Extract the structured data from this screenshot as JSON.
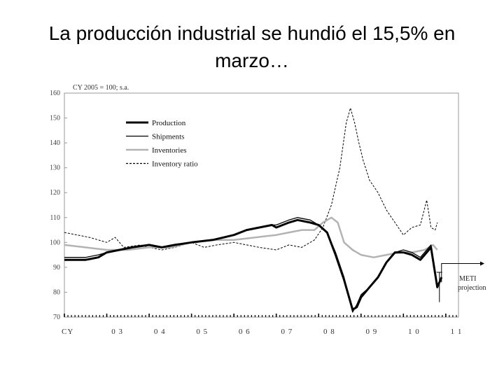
{
  "title": "La producción industrial se hundió el 15,5% en marzo…",
  "chart_data": {
    "type": "line",
    "unit_note": "CY 2005 = 100; s.a.",
    "ylim": [
      70,
      160
    ],
    "yticks": [
      70,
      80,
      90,
      100,
      110,
      120,
      130,
      140,
      150,
      160
    ],
    "x_axis_prefix": "CY",
    "x_years": [
      {
        "label": "0 3",
        "t": 2003.0
      },
      {
        "label": "0 4",
        "t": 2004.0
      },
      {
        "label": "0 5",
        "t": 2005.0
      },
      {
        "label": "0 6",
        "t": 2006.0
      },
      {
        "label": "0 7",
        "t": 2007.0
      },
      {
        "label": "0 8",
        "t": 2008.0
      },
      {
        "label": "0 9",
        "t": 2009.0
      },
      {
        "label": "1 0",
        "t": 2010.0
      },
      {
        "label": "1 1",
        "t": 2011.0
      }
    ],
    "xlim": [
      2002.0,
      2011.3
    ],
    "annotation": "METI projection",
    "legend_position": "upper-left",
    "series": [
      {
        "name": "Production",
        "color": "#000000",
        "width": 3,
        "dash": "",
        "points": [
          [
            2002.0,
            93
          ],
          [
            2002.5,
            93
          ],
          [
            2002.8,
            94
          ],
          [
            2003.0,
            96
          ],
          [
            2003.3,
            97
          ],
          [
            2003.6,
            98
          ],
          [
            2004.0,
            99
          ],
          [
            2004.3,
            98
          ],
          [
            2004.6,
            99
          ],
          [
            2005.0,
            100
          ],
          [
            2005.5,
            101
          ],
          [
            2006.0,
            103
          ],
          [
            2006.3,
            105
          ],
          [
            2006.6,
            106
          ],
          [
            2006.9,
            107
          ],
          [
            2007.0,
            106
          ],
          [
            2007.3,
            108
          ],
          [
            2007.5,
            109
          ],
          [
            2007.8,
            108
          ],
          [
            2008.0,
            107
          ],
          [
            2008.2,
            104
          ],
          [
            2008.4,
            95
          ],
          [
            2008.6,
            85
          ],
          [
            2008.8,
            73
          ],
          [
            2008.9,
            74
          ],
          [
            2009.0,
            78
          ],
          [
            2009.2,
            82
          ],
          [
            2009.4,
            86
          ],
          [
            2009.6,
            92
          ],
          [
            2009.8,
            96
          ],
          [
            2010.0,
            96
          ],
          [
            2010.2,
            95
          ],
          [
            2010.4,
            93
          ],
          [
            2010.5,
            95
          ],
          [
            2010.65,
            98
          ],
          [
            2010.8,
            82
          ],
          [
            2010.9,
            86
          ]
        ]
      },
      {
        "name": "Shipments",
        "color": "#000000",
        "width": 1.3,
        "dash": "",
        "points": [
          [
            2002.0,
            94
          ],
          [
            2002.5,
            94
          ],
          [
            2002.8,
            95
          ],
          [
            2003.0,
            96
          ],
          [
            2003.3,
            97
          ],
          [
            2003.6,
            98
          ],
          [
            2004.0,
            99
          ],
          [
            2004.3,
            98
          ],
          [
            2004.6,
            99
          ],
          [
            2005.0,
            100
          ],
          [
            2005.5,
            101
          ],
          [
            2006.0,
            103
          ],
          [
            2006.3,
            105
          ],
          [
            2006.6,
            106
          ],
          [
            2006.9,
            107
          ],
          [
            2007.0,
            107
          ],
          [
            2007.3,
            109
          ],
          [
            2007.5,
            110
          ],
          [
            2007.8,
            109
          ],
          [
            2008.0,
            107
          ],
          [
            2008.2,
            104
          ],
          [
            2008.4,
            96
          ],
          [
            2008.6,
            86
          ],
          [
            2008.8,
            72
          ],
          [
            2008.9,
            75
          ],
          [
            2009.0,
            79
          ],
          [
            2009.2,
            82
          ],
          [
            2009.4,
            86
          ],
          [
            2009.6,
            92
          ],
          [
            2009.8,
            96
          ],
          [
            2010.0,
            97
          ],
          [
            2010.2,
            96
          ],
          [
            2010.4,
            94
          ],
          [
            2010.5,
            96
          ],
          [
            2010.65,
            99
          ],
          [
            2010.8,
            83
          ],
          [
            2010.9,
            85
          ]
        ]
      },
      {
        "name": "Inventories",
        "color": "#b3b3b3",
        "width": 2.5,
        "dash": "",
        "points": [
          [
            2002.0,
            99
          ],
          [
            2002.5,
            98
          ],
          [
            2003.0,
            97
          ],
          [
            2003.5,
            97
          ],
          [
            2004.0,
            98
          ],
          [
            2004.5,
            98
          ],
          [
            2005.0,
            100
          ],
          [
            2005.5,
            101
          ],
          [
            2006.0,
            101
          ],
          [
            2006.5,
            102
          ],
          [
            2007.0,
            103
          ],
          [
            2007.3,
            104
          ],
          [
            2007.6,
            105
          ],
          [
            2007.9,
            105
          ],
          [
            2008.1,
            108
          ],
          [
            2008.3,
            110
          ],
          [
            2008.45,
            108
          ],
          [
            2008.6,
            100
          ],
          [
            2008.8,
            97
          ],
          [
            2009.0,
            95
          ],
          [
            2009.3,
            94
          ],
          [
            2009.6,
            95
          ],
          [
            2009.9,
            96
          ],
          [
            2010.2,
            96
          ],
          [
            2010.5,
            97
          ],
          [
            2010.7,
            99
          ],
          [
            2010.8,
            97
          ]
        ]
      },
      {
        "name": "Inventory ratio",
        "color": "#000000",
        "width": 1,
        "dash": "3,2",
        "points": [
          [
            2002.0,
            104
          ],
          [
            2002.3,
            103
          ],
          [
            2002.6,
            102
          ],
          [
            2003.0,
            100
          ],
          [
            2003.2,
            102
          ],
          [
            2003.4,
            98
          ],
          [
            2003.8,
            99
          ],
          [
            2004.0,
            98
          ],
          [
            2004.3,
            97
          ],
          [
            2004.6,
            98
          ],
          [
            2005.0,
            100
          ],
          [
            2005.3,
            98
          ],
          [
            2005.6,
            99
          ],
          [
            2006.0,
            100
          ],
          [
            2006.3,
            99
          ],
          [
            2006.6,
            98
          ],
          [
            2007.0,
            97
          ],
          [
            2007.3,
            99
          ],
          [
            2007.6,
            98
          ],
          [
            2007.9,
            101
          ],
          [
            2008.1,
            106
          ],
          [
            2008.3,
            115
          ],
          [
            2008.5,
            130
          ],
          [
            2008.65,
            148
          ],
          [
            2008.75,
            154
          ],
          [
            2008.85,
            148
          ],
          [
            2008.95,
            140
          ],
          [
            2009.05,
            133
          ],
          [
            2009.2,
            125
          ],
          [
            2009.4,
            120
          ],
          [
            2009.6,
            113
          ],
          [
            2009.8,
            108
          ],
          [
            2010.0,
            103
          ],
          [
            2010.2,
            106
          ],
          [
            2010.4,
            107
          ],
          [
            2010.55,
            117
          ],
          [
            2010.65,
            106
          ],
          [
            2010.75,
            105
          ],
          [
            2010.8,
            108
          ]
        ]
      }
    ]
  }
}
